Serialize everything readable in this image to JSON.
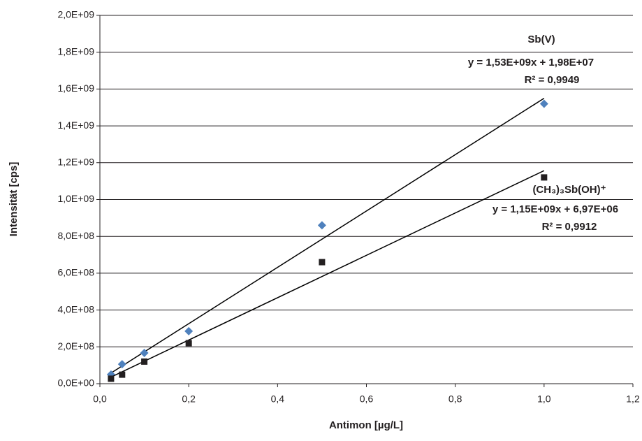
{
  "chart_data": {
    "type": "scatter",
    "x_label": "Antimon [µg/L]",
    "y_label": "Intensität [cps]",
    "xlim": [
      0,
      1.2
    ],
    "xticks": [
      {
        "value": 0,
        "label": "0,0"
      },
      {
        "value": 0.2,
        "label": "0,2"
      },
      {
        "value": 0.4,
        "label": "0,4"
      },
      {
        "value": 0.6,
        "label": "0,6"
      },
      {
        "value": 0.8,
        "label": "0,8"
      },
      {
        "value": 1.0,
        "label": "1,0"
      },
      {
        "value": 1.2,
        "label": "1,2"
      }
    ],
    "ylim": [
      0,
      2000000000
    ],
    "yticks": [
      {
        "value": 0,
        "label": "0,0E+00"
      },
      {
        "value": 200000000,
        "label": "2,0E+08"
      },
      {
        "value": 400000000,
        "label": "4,0E+08"
      },
      {
        "value": 600000000,
        "label": "6,0E+08"
      },
      {
        "value": 800000000,
        "label": "8,0E+08"
      },
      {
        "value": 1000000000,
        "label": "1,0E+09"
      },
      {
        "value": 1200000000,
        "label": "1,2E+09"
      },
      {
        "value": 1400000000,
        "label": "1,4E+09"
      },
      {
        "value": 1600000000,
        "label": "1,6E+09"
      },
      {
        "value": 1800000000,
        "label": "1,8E+09"
      },
      {
        "value": 2000000000,
        "label": "2,0E+09"
      }
    ],
    "grid": true,
    "x": [
      0.025,
      0.05,
      0.1,
      0.2,
      0.5,
      1.0
    ],
    "series": [
      {
        "name": "Sb(V)",
        "color": "#4f81bd",
        "marker": "diamond",
        "values": [
          50000000,
          106000000,
          167000000,
          285000000,
          860000000,
          1520000000
        ],
        "trendline": {
          "slope": 1530000000,
          "intercept": 19800000,
          "equation": "y = 1,53E+09x + 1,98E+07",
          "r2": "R² = 0,9949"
        }
      },
      {
        "name": "(CH₃)₃Sb(OH)⁺",
        "color": "#231f20",
        "marker": "square",
        "values": [
          27000000,
          49000000,
          120000000,
          220000000,
          660000000,
          1120000000
        ],
        "trendline": {
          "slope": 1150000000,
          "intercept": 6970000,
          "equation": "y = 1,15E+09x + 6,97E+06",
          "r2": "R² = 0,9912"
        }
      }
    ]
  }
}
